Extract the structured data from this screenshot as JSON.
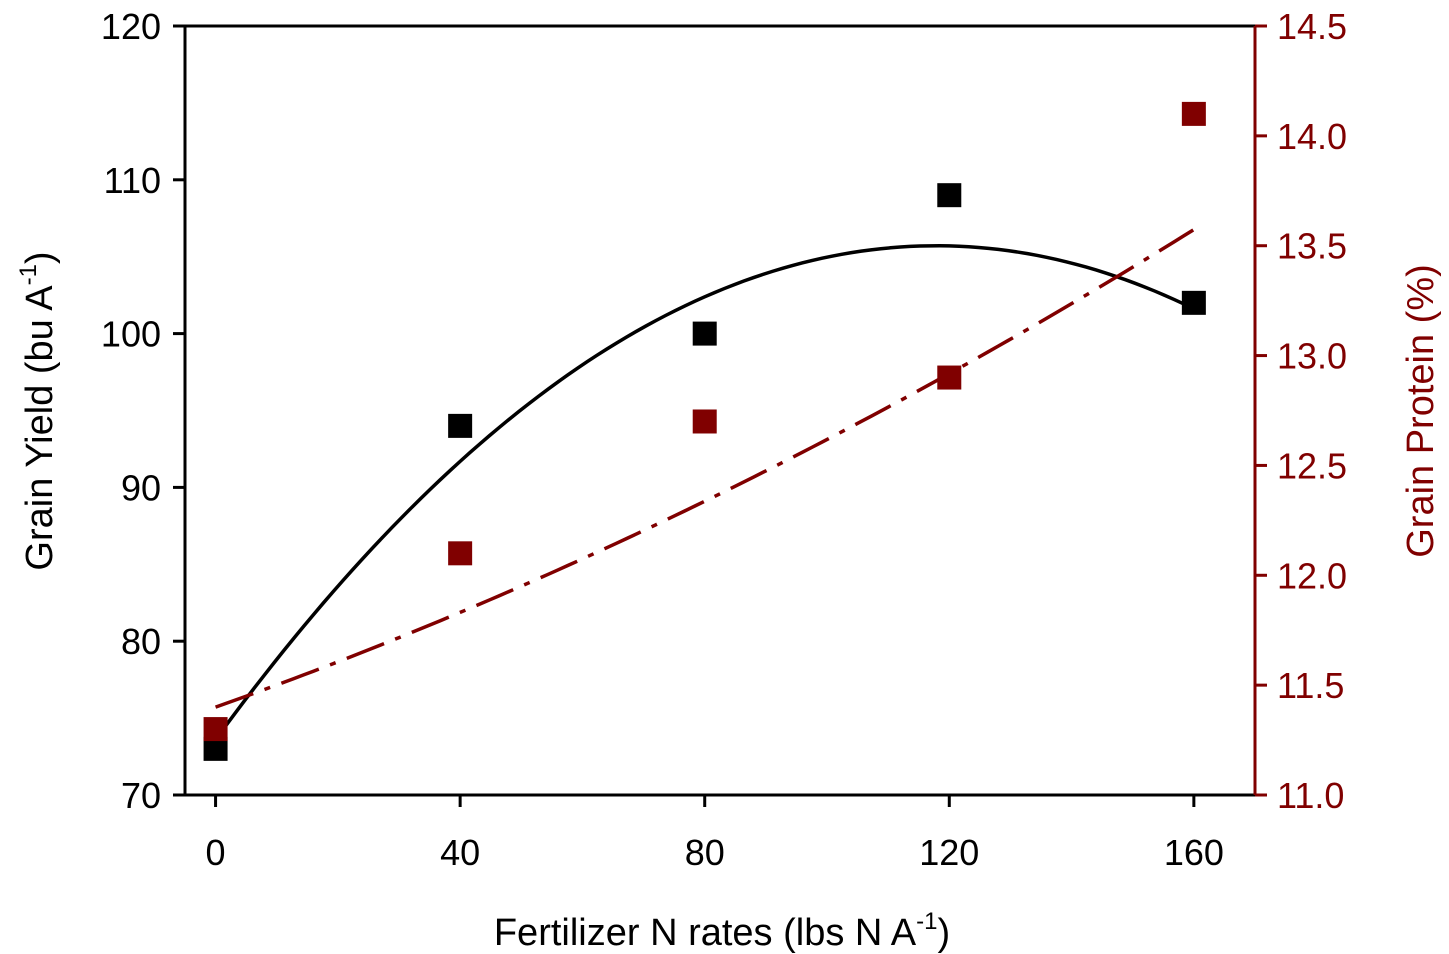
{
  "chart_data": {
    "type": "scatter",
    "x_axis": {
      "label_main": "Fertilizer N rates (lbs N A",
      "label_sup": "-1",
      "label_end": ")",
      "ticks": [
        0,
        40,
        80,
        120,
        160
      ],
      "range": [
        -5,
        170
      ]
    },
    "y_axis_left": {
      "label_main": "Grain Yield (bu A",
      "label_sup": "-1",
      "label_end": ")",
      "ticks": [
        "70",
        "80",
        "90",
        "100",
        "110",
        "120"
      ],
      "range": [
        70,
        120
      ],
      "color": "#000000"
    },
    "y_axis_right": {
      "label": "Grain Protein (%)",
      "ticks": [
        "11.0",
        "11.5",
        "12.0",
        "12.5",
        "13.0",
        "13.5",
        "14.0",
        "14.5"
      ],
      "range": [
        11.0,
        14.5
      ],
      "color": "#800000"
    },
    "series": [
      {
        "axis": "left",
        "color": "#000000",
        "marker": "square",
        "points": [
          [
            0,
            73
          ],
          [
            40,
            94
          ],
          [
            80,
            100
          ],
          [
            120,
            109
          ],
          [
            160,
            102
          ]
        ],
        "fit": {
          "type": "quadratic",
          "style": "solid",
          "a": -0.00231,
          "b": 0.5447,
          "c": 73.6
        }
      },
      {
        "axis": "right",
        "color": "#800000",
        "marker": "square",
        "points": [
          [
            0,
            11.3
          ],
          [
            40,
            12.1
          ],
          [
            80,
            12.7
          ],
          [
            120,
            12.9
          ],
          [
            160,
            14.1
          ]
        ],
        "fit": {
          "type": "quadratic",
          "style": "dash-dot",
          "a": 2.34e-05,
          "b": 0.00984,
          "c": 11.4
        }
      }
    ],
    "grid": false,
    "legend": "none"
  }
}
